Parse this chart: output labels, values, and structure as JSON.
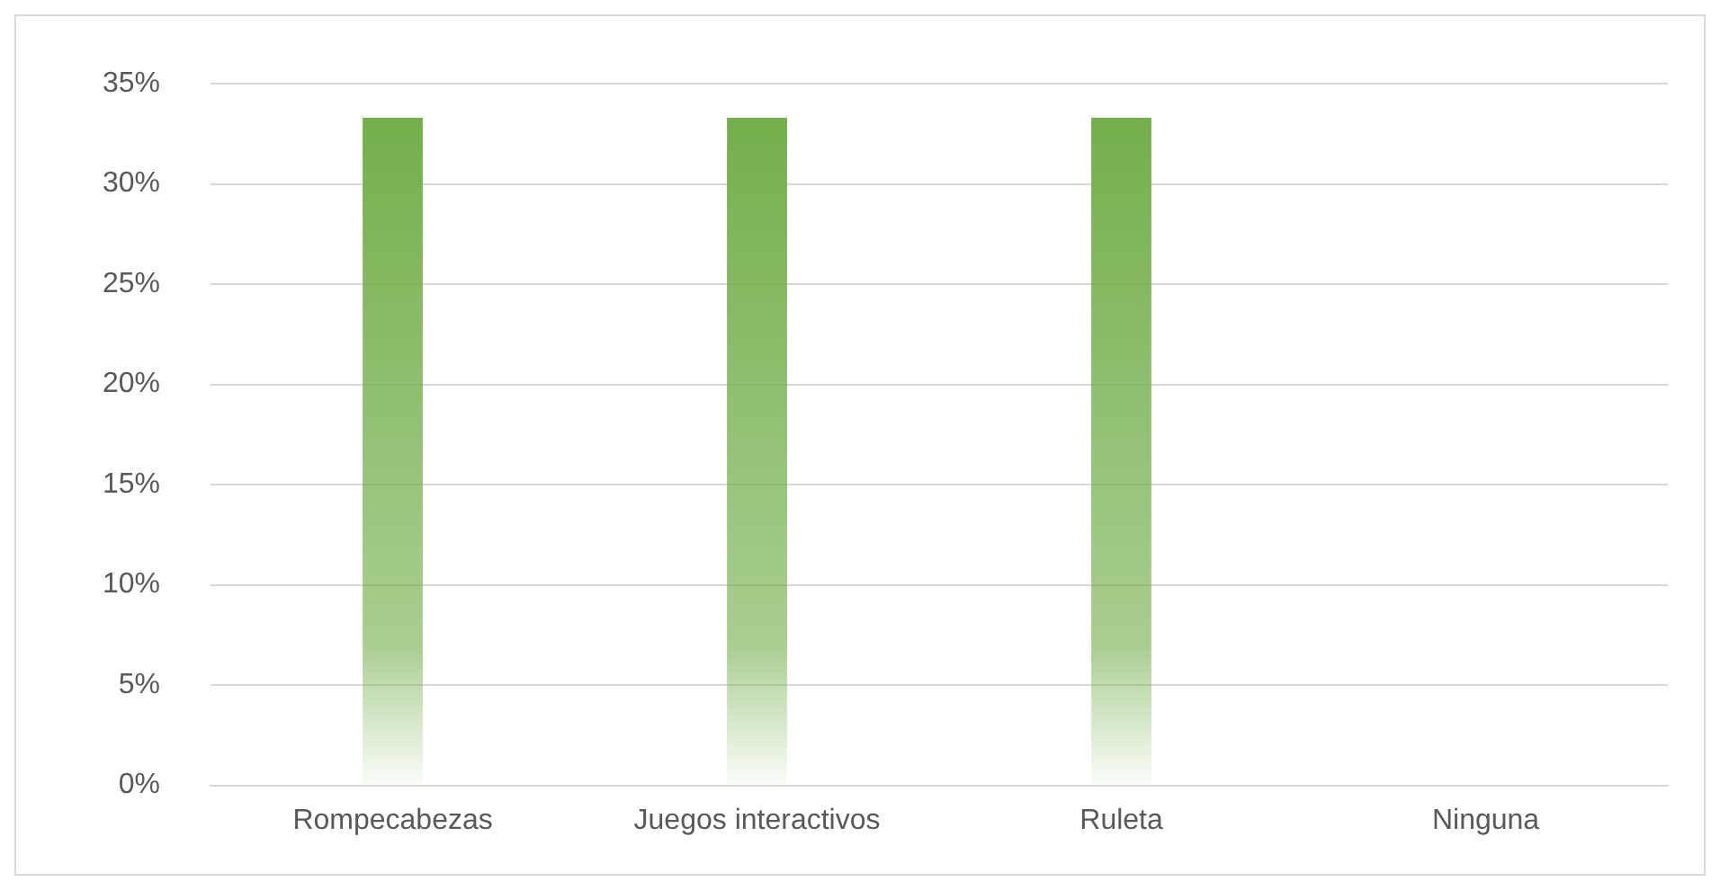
{
  "chart_data": {
    "type": "bar",
    "categories": [
      "Rompecabezas",
      "Juegos interactivos",
      "Ruleta",
      "Ninguna"
    ],
    "values": [
      33.3,
      33.3,
      33.3,
      0
    ],
    "color": "#70ad47",
    "ylim": [
      0,
      35
    ],
    "yticks": [
      {
        "value": 0,
        "label": "0%"
      },
      {
        "value": 5,
        "label": "5%"
      },
      {
        "value": 10,
        "label": "10%"
      },
      {
        "value": 15,
        "label": "15%"
      },
      {
        "value": 20,
        "label": "20%"
      },
      {
        "value": 25,
        "label": "25%"
      },
      {
        "value": 30,
        "label": "30%"
      },
      {
        "value": 35,
        "label": "35%"
      }
    ],
    "grid": "y"
  }
}
